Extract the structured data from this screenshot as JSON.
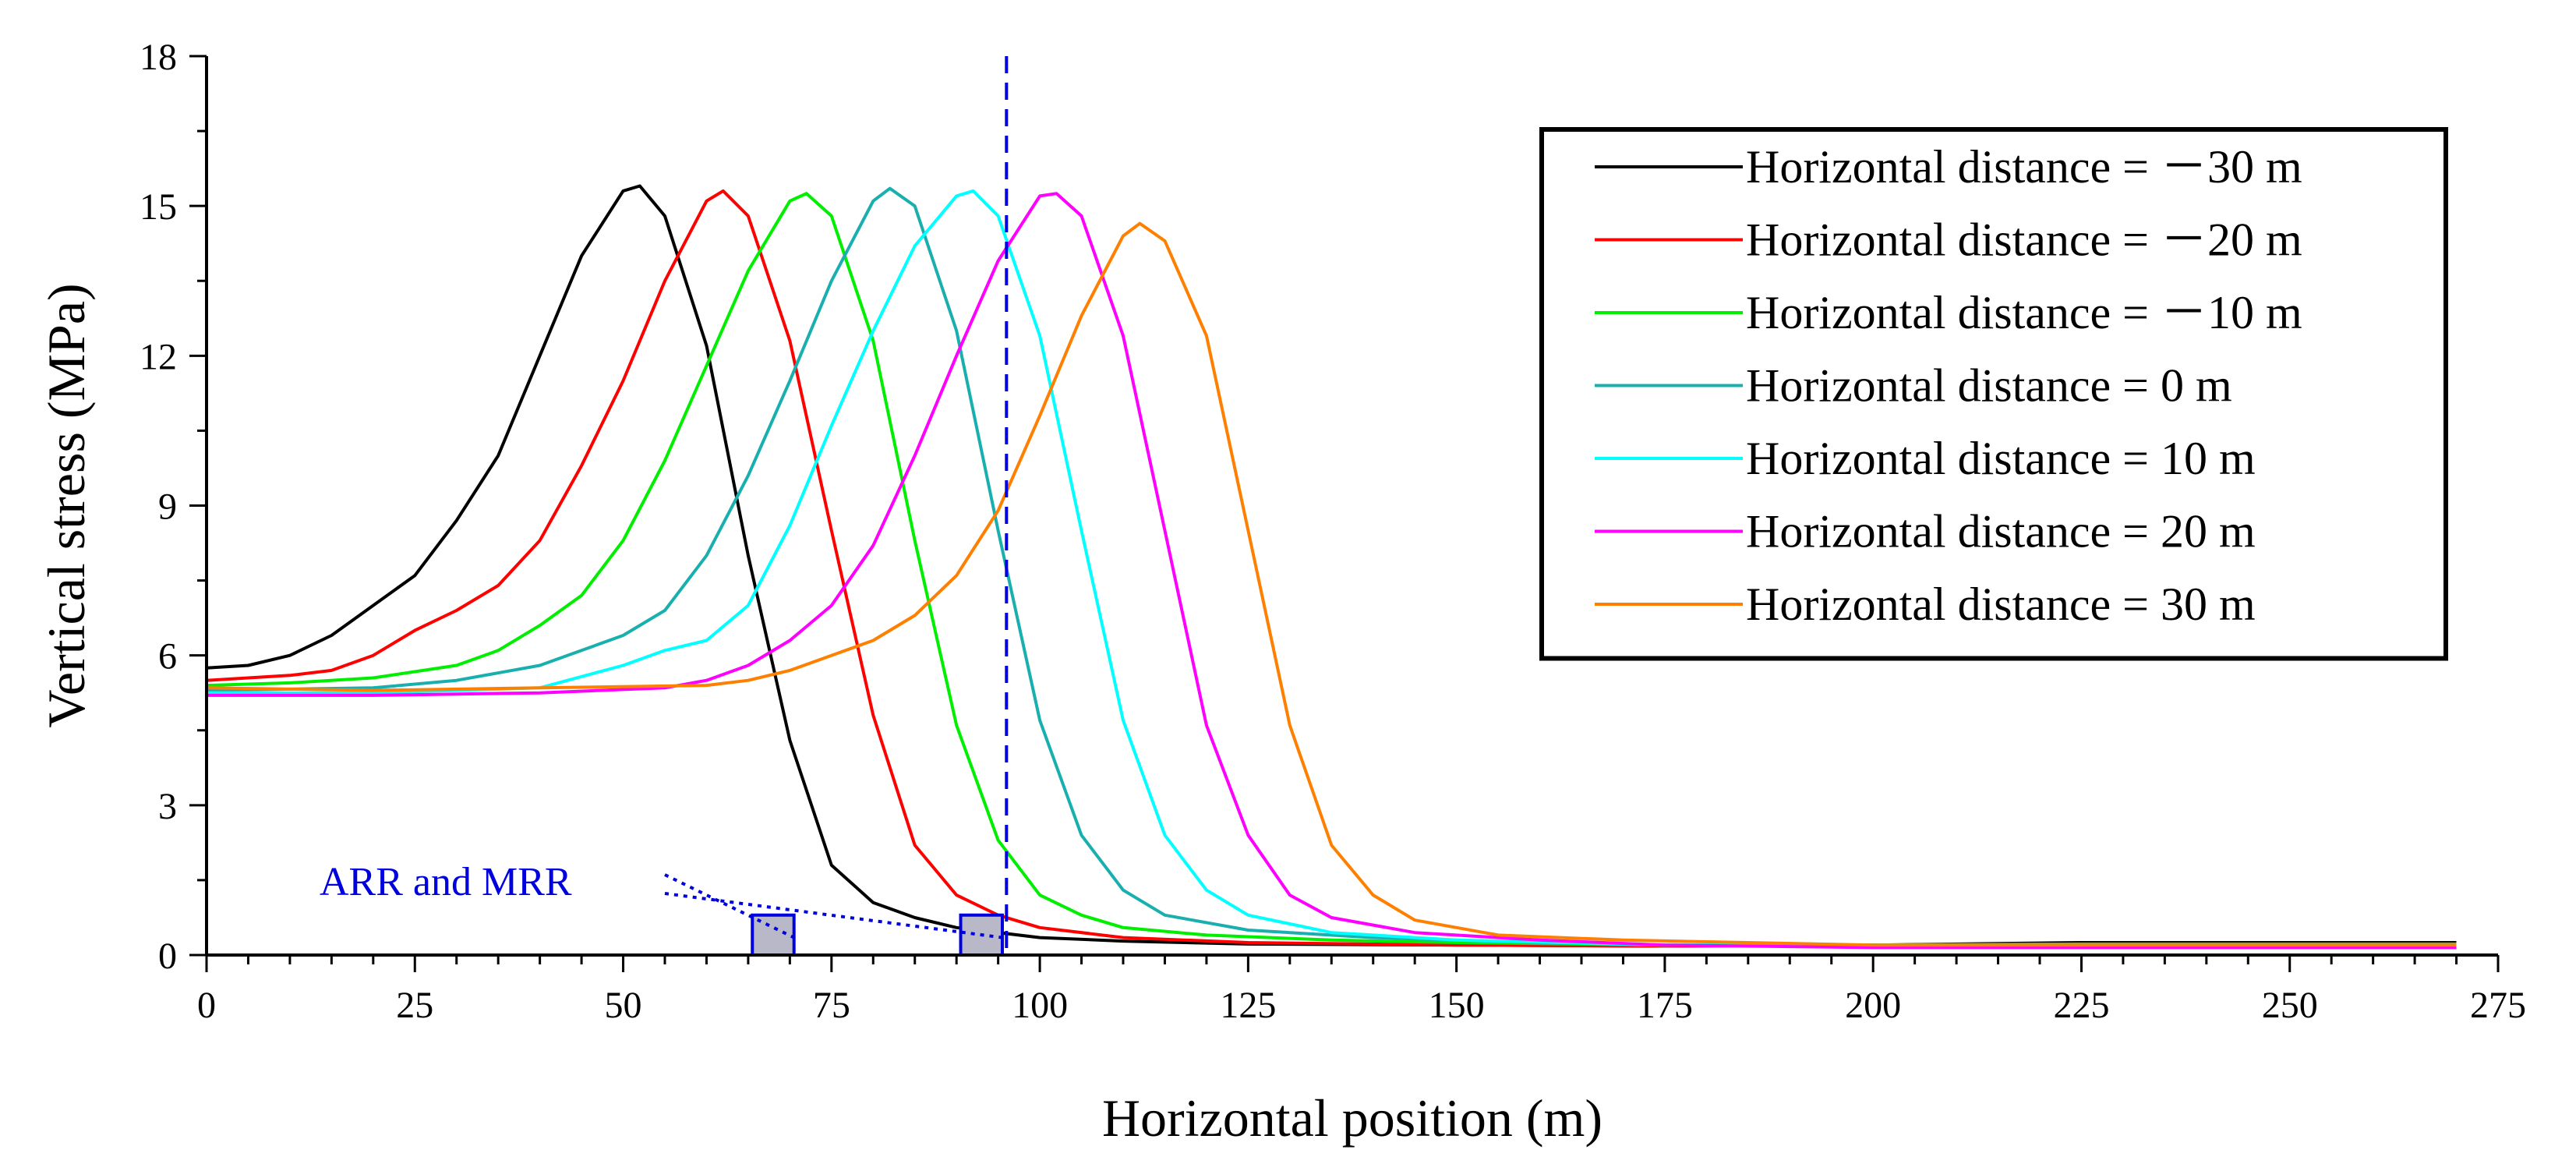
{
  "chart_data": {
    "type": "line",
    "xlabel": "Horizontal position (m)",
    "ylabel": "Vertical stress (MPa)",
    "xlim": [
      0,
      275
    ],
    "ylim": [
      0,
      18
    ],
    "xticks": [
      0,
      25,
      50,
      75,
      100,
      125,
      150,
      175,
      200,
      225,
      250,
      275
    ],
    "yticks": [
      0,
      3,
      6,
      9,
      12,
      15,
      18
    ],
    "grid": false,
    "legend_position": "top-right",
    "series": [
      {
        "name": "Horizontal distance = －30 m",
        "color": "#000000",
        "x": [
          0,
          5,
          10,
          15,
          20,
          25,
          30,
          35,
          40,
          45,
          50,
          52,
          55,
          60,
          65,
          70,
          75,
          80,
          85,
          90,
          100,
          110,
          125,
          150,
          175,
          200,
          225,
          250,
          270
        ],
        "y": [
          5.75,
          5.8,
          6.0,
          6.4,
          7.0,
          7.6,
          8.7,
          10.0,
          12.0,
          14.0,
          15.3,
          15.4,
          14.8,
          12.2,
          8.0,
          4.3,
          1.8,
          1.05,
          0.75,
          0.55,
          0.35,
          0.28,
          0.22,
          0.2,
          0.18,
          0.2,
          0.25,
          0.25,
          0.25
        ]
      },
      {
        "name": "Horizontal distance = －20 m",
        "color": "#ff0000",
        "x": [
          0,
          5,
          10,
          15,
          20,
          25,
          30,
          35,
          40,
          45,
          50,
          55,
          60,
          62,
          65,
          70,
          75,
          80,
          85,
          90,
          95,
          100,
          110,
          125,
          150,
          175,
          200,
          225,
          250,
          270
        ],
        "y": [
          5.5,
          5.55,
          5.6,
          5.7,
          6.0,
          6.5,
          6.9,
          7.4,
          8.3,
          9.8,
          11.5,
          13.5,
          15.1,
          15.3,
          14.8,
          12.3,
          8.5,
          4.8,
          2.2,
          1.2,
          0.8,
          0.55,
          0.35,
          0.25,
          0.2,
          0.18,
          0.2,
          0.22,
          0.22,
          0.22
        ]
      },
      {
        "name": "Horizontal distance = －10 m",
        "color": "#00ee00",
        "x": [
          0,
          10,
          20,
          30,
          35,
          40,
          45,
          50,
          55,
          60,
          65,
          70,
          72,
          75,
          80,
          85,
          90,
          95,
          100,
          105,
          110,
          120,
          135,
          150,
          175,
          200,
          225,
          250,
          270
        ],
        "y": [
          5.4,
          5.45,
          5.55,
          5.8,
          6.1,
          6.6,
          7.2,
          8.3,
          9.9,
          11.8,
          13.7,
          15.1,
          15.25,
          14.8,
          12.3,
          8.3,
          4.6,
          2.3,
          1.2,
          0.8,
          0.55,
          0.4,
          0.3,
          0.25,
          0.2,
          0.2,
          0.22,
          0.22,
          0.22
        ]
      },
      {
        "name": "Horizontal distance = 0 m",
        "color": "#1aafaf",
        "x": [
          0,
          20,
          30,
          40,
          45,
          50,
          55,
          60,
          65,
          70,
          75,
          80,
          82,
          85,
          90,
          95,
          100,
          105,
          110,
          115,
          125,
          140,
          160,
          175,
          200,
          225,
          250,
          270
        ],
        "y": [
          5.3,
          5.35,
          5.5,
          5.8,
          6.1,
          6.4,
          6.9,
          8.0,
          9.6,
          11.5,
          13.5,
          15.1,
          15.35,
          15.0,
          12.5,
          8.5,
          4.7,
          2.4,
          1.3,
          0.8,
          0.5,
          0.35,
          0.25,
          0.2,
          0.2,
          0.2,
          0.2,
          0.2
        ]
      },
      {
        "name": "Horizontal distance = 10 m",
        "color": "#00ffff",
        "x": [
          0,
          20,
          40,
          50,
          55,
          60,
          65,
          70,
          75,
          80,
          85,
          90,
          92,
          95,
          100,
          105,
          110,
          115,
          120,
          125,
          135,
          150,
          175,
          200,
          225,
          250,
          270
        ],
        "y": [
          5.25,
          5.25,
          5.35,
          5.8,
          6.1,
          6.3,
          7.0,
          8.6,
          10.6,
          12.5,
          14.2,
          15.2,
          15.3,
          14.8,
          12.4,
          8.5,
          4.7,
          2.4,
          1.3,
          0.8,
          0.45,
          0.3,
          0.2,
          0.2,
          0.2,
          0.2,
          0.2
        ]
      },
      {
        "name": "Horizontal distance = 20 m",
        "color": "#ff00ff",
        "x": [
          0,
          20,
          40,
          55,
          60,
          65,
          70,
          75,
          80,
          85,
          90,
          95,
          100,
          102,
          105,
          110,
          115,
          120,
          125,
          130,
          135,
          145,
          160,
          175,
          200,
          225,
          250,
          270
        ],
        "y": [
          5.2,
          5.2,
          5.25,
          5.35,
          5.5,
          5.8,
          6.3,
          7.0,
          8.2,
          10.0,
          12.0,
          13.9,
          15.2,
          15.25,
          14.8,
          12.4,
          8.5,
          4.6,
          2.4,
          1.2,
          0.75,
          0.45,
          0.3,
          0.2,
          0.15,
          0.15,
          0.15,
          0.15
        ]
      },
      {
        "name": "Horizontal distance = 30 m",
        "color": "#ff8000",
        "x": [
          0,
          20,
          40,
          60,
          65,
          70,
          75,
          80,
          85,
          90,
          95,
          100,
          105,
          110,
          112,
          115,
          120,
          125,
          130,
          135,
          140,
          145,
          155,
          170,
          200,
          225,
          250,
          270
        ],
        "y": [
          5.35,
          5.3,
          5.35,
          5.4,
          5.5,
          5.7,
          6.0,
          6.3,
          6.8,
          7.6,
          8.9,
          10.8,
          12.8,
          14.4,
          14.65,
          14.3,
          12.4,
          8.5,
          4.6,
          2.2,
          1.2,
          0.7,
          0.4,
          0.3,
          0.2,
          0.2,
          0.2,
          0.2
        ]
      }
    ],
    "reference_line": {
      "x": 96,
      "style": "dashed",
      "color": "#0000dd"
    },
    "annotations": [
      {
        "text": "ARR and MRR",
        "color": "#0000dd"
      }
    ],
    "highlight_boxes": [
      {
        "x": [
          65.5,
          70.5
        ],
        "y": [
          0,
          0.8
        ],
        "fill": "#b8b8c8",
        "stroke": "#0000dd"
      },
      {
        "x": [
          90.5,
          95.5
        ],
        "y": [
          0,
          0.8
        ],
        "fill": "#b8b8c8",
        "stroke": "#0000dd"
      }
    ],
    "annotation_targets": [
      {
        "x": 70.5,
        "y": 0.35
      },
      {
        "x": 95.5,
        "y": 0.35
      }
    ]
  }
}
